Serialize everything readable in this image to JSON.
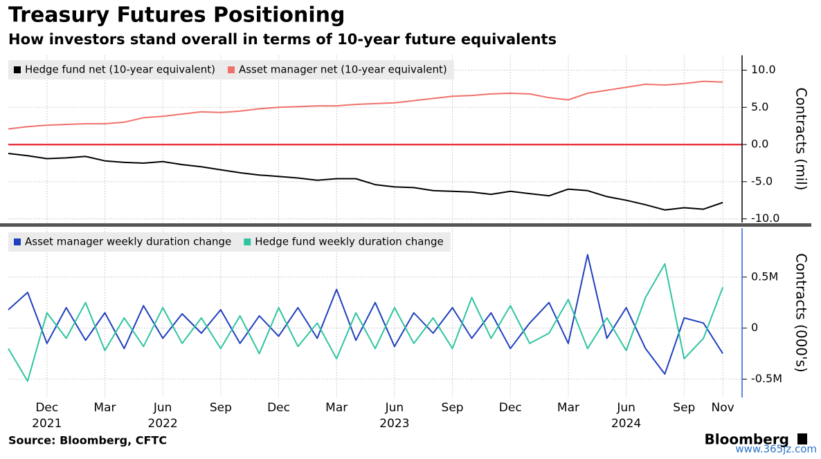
{
  "title": "Treasury Futures Positioning",
  "subtitle": "How investors stand overall in terms of 10-year future equivalents",
  "source": "Source: Bloomberg, CFTC",
  "brand": "Bloomberg",
  "watermark": "www.365jz.com",
  "chart_data": [
    {
      "type": "line",
      "y_label": "Contracts (mil)",
      "x": [
        "2021-10",
        "2021-11",
        "2021-12",
        "2022-01",
        "2022-02",
        "2022-03",
        "2022-04",
        "2022-05",
        "2022-06",
        "2022-07",
        "2022-08",
        "2022-09",
        "2022-10",
        "2022-11",
        "2022-12",
        "2023-01",
        "2023-02",
        "2023-03",
        "2023-04",
        "2023-05",
        "2023-06",
        "2023-07",
        "2023-08",
        "2023-09",
        "2023-10",
        "2023-11",
        "2023-12",
        "2024-01",
        "2024-02",
        "2024-03",
        "2024-04",
        "2024-05",
        "2024-06",
        "2024-07",
        "2024-08",
        "2024-09",
        "2024-10",
        "2024-11"
      ],
      "xlim": [
        "2021-10",
        "2024-12"
      ],
      "ylim": [
        -10.5,
        12
      ],
      "yticks": [
        {
          "value": 10,
          "label": "10.0"
        },
        {
          "value": 5,
          "label": "5.0"
        },
        {
          "value": 0,
          "label": "0.0"
        },
        {
          "value": -5,
          "label": "-5.0"
        },
        {
          "value": -10,
          "label": "-10.0"
        }
      ],
      "grid": true,
      "zero_line_color": "#e8353d",
      "series": [
        {
          "name": "Hedge fund net (10-year equivalent)",
          "color": "#000000",
          "values": [
            -1.2,
            -1.5,
            -1.9,
            -1.8,
            -1.6,
            -2.2,
            -2.4,
            -2.5,
            -2.3,
            -2.7,
            -3.0,
            -3.4,
            -3.8,
            -4.1,
            -4.3,
            -4.5,
            -4.8,
            -4.6,
            -4.6,
            -5.4,
            -5.7,
            -5.8,
            -6.2,
            -6.3,
            -6.4,
            -6.7,
            -6.3,
            -6.6,
            -6.9,
            -6.0,
            -6.2,
            -7.0,
            -7.5,
            -8.1,
            -8.8,
            -8.5,
            -8.7,
            -7.8
          ]
        },
        {
          "name": "Asset manager net (10-year equivalent)",
          "color": "#f0706a",
          "values": [
            2.1,
            2.4,
            2.6,
            2.7,
            2.8,
            2.8,
            3.0,
            3.6,
            3.8,
            4.1,
            4.4,
            4.3,
            4.5,
            4.8,
            5.0,
            5.1,
            5.2,
            5.2,
            5.4,
            5.5,
            5.6,
            5.9,
            6.2,
            6.5,
            6.6,
            6.8,
            6.9,
            6.8,
            6.3,
            6.0,
            6.9,
            7.3,
            7.7,
            8.1,
            8.0,
            8.2,
            8.5,
            8.4
          ]
        }
      ]
    },
    {
      "type": "line",
      "y_label": "Contracts (000's)",
      "x": [
        "2021-10",
        "2021-11",
        "2021-12",
        "2022-01",
        "2022-02",
        "2022-03",
        "2022-04",
        "2022-05",
        "2022-06",
        "2022-07",
        "2022-08",
        "2022-09",
        "2022-10",
        "2022-11",
        "2022-12",
        "2023-01",
        "2023-02",
        "2023-03",
        "2023-04",
        "2023-05",
        "2023-06",
        "2023-07",
        "2023-08",
        "2023-09",
        "2023-10",
        "2023-11",
        "2023-12",
        "2024-01",
        "2024-02",
        "2024-03",
        "2024-04",
        "2024-05",
        "2024-06",
        "2024-07",
        "2024-08",
        "2024-09",
        "2024-10",
        "2024-11"
      ],
      "xlim": [
        "2021-10",
        "2024-12"
      ],
      "ylim": [
        -0.68,
        0.98
      ],
      "yticks": [
        {
          "value": 0.5,
          "label": "0.5M"
        },
        0,
        {
          "value": -0.5,
          "label": "-0.5M"
        }
      ],
      "xticks": [
        {
          "value": "2021-12",
          "label": "Dec"
        },
        {
          "value": "2022-03",
          "label": "Mar"
        },
        {
          "value": "2022-06",
          "label": "Jun"
        },
        {
          "value": "2022-09",
          "label": "Sep"
        },
        {
          "value": "2022-12",
          "label": "Dec"
        },
        {
          "value": "2023-03",
          "label": "Mar"
        },
        {
          "value": "2023-06",
          "label": "Jun"
        },
        {
          "value": "2023-09",
          "label": "Sep"
        },
        {
          "value": "2023-12",
          "label": "Dec"
        },
        {
          "value": "2024-03",
          "label": "Mar"
        },
        {
          "value": "2024-06",
          "label": "Jun"
        },
        {
          "value": "2024-09",
          "label": "Sep"
        },
        {
          "value": "2024-11",
          "label": "Nov"
        }
      ],
      "year_labels": [
        {
          "value": "2021-12",
          "label": "2021"
        },
        {
          "value": "2022-06",
          "label": "2022"
        },
        {
          "value": "2023-06",
          "label": "2023"
        },
        {
          "value": "2024-06",
          "label": "2024"
        }
      ],
      "grid": true,
      "series": [
        {
          "name": "Asset manager weekly duration change",
          "color": "#1f3fbf",
          "values": [
            0.18,
            0.35,
            -0.15,
            0.2,
            -0.12,
            0.15,
            -0.2,
            0.22,
            -0.1,
            0.14,
            -0.05,
            0.18,
            -0.15,
            0.12,
            -0.08,
            0.2,
            -0.1,
            0.38,
            -0.12,
            0.25,
            -0.18,
            0.15,
            -0.05,
            0.2,
            -0.1,
            0.15,
            -0.2,
            0.05,
            0.25,
            -0.15,
            0.72,
            -0.1,
            0.2,
            -0.2,
            -0.45,
            0.1,
            0.05,
            -0.25
          ]
        },
        {
          "name": "Hedge fund weekly duration change",
          "color": "#2ec4a0",
          "values": [
            -0.2,
            -0.52,
            0.15,
            -0.1,
            0.25,
            -0.22,
            0.1,
            -0.18,
            0.2,
            -0.15,
            0.1,
            -0.2,
            0.12,
            -0.25,
            0.2,
            -0.18,
            0.05,
            -0.3,
            0.15,
            -0.2,
            0.2,
            -0.15,
            0.1,
            -0.2,
            0.3,
            -0.1,
            0.22,
            -0.15,
            -0.05,
            0.28,
            -0.2,
            0.1,
            -0.22,
            0.3,
            0.63,
            -0.3,
            -0.1,
            0.4
          ]
        }
      ]
    }
  ]
}
